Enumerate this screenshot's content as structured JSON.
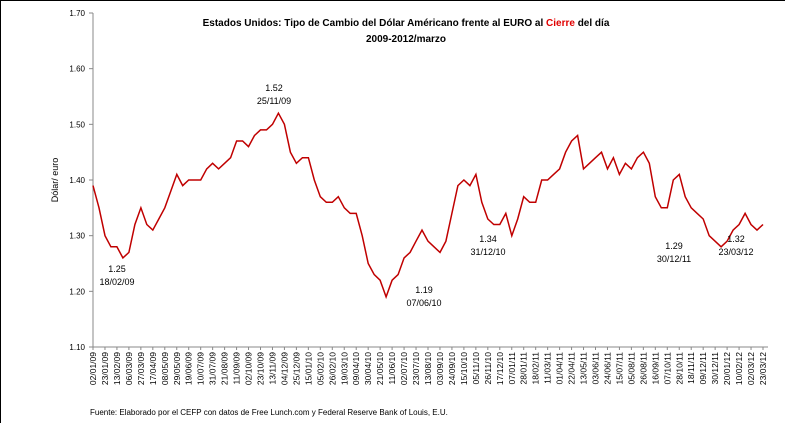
{
  "chart_data": {
    "type": "line",
    "title_parts": [
      "Estados Unidos: Tipo de Cambio del Dólar Américano frente al EURO al ",
      "Cierre",
      " del día"
    ],
    "subtitle": "2009-2012/marzo",
    "y_label": "Dólar/ euro",
    "source": "Fuente: Elaborado por el CEFP con datos de Free Lunch.com y Federal Reserve Bank of Louis, E.U.",
    "ylim": [
      1.1,
      1.7
    ],
    "yticks": [
      {
        "value": 1.1,
        "label": "1.10"
      },
      {
        "value": 1.2,
        "label": "1.20"
      },
      {
        "value": 1.3,
        "label": "1.30"
      },
      {
        "value": 1.4,
        "label": "1.40"
      },
      {
        "value": 1.5,
        "label": "1.50"
      },
      {
        "value": 1.6,
        "label": "1.60"
      },
      {
        "value": 1.7,
        "label": "1.70"
      }
    ],
    "categories": [
      "02/01/09",
      null,
      "23/01/09",
      null,
      "13/02/09",
      null,
      "06/03/09",
      null,
      "27/03/09",
      null,
      "17/04/09",
      null,
      "08/05/09",
      null,
      "29/05/09",
      null,
      "19/06/09",
      null,
      "10/07/09",
      null,
      "31/07/09",
      null,
      "21/08/09",
      null,
      "11/09/09",
      null,
      "02/10/09",
      null,
      "23/10/09",
      null,
      "13/11/09",
      null,
      "04/12/09",
      null,
      "25/12/09",
      null,
      "15/01/10",
      null,
      "05/02/10",
      null,
      "26/02/10",
      null,
      "19/03/10",
      null,
      "09/04/10",
      null,
      "30/04/10",
      null,
      "21/05/10",
      null,
      "11/06/10",
      null,
      "02/07/10",
      null,
      "23/07/10",
      null,
      "13/08/10",
      null,
      "03/09/10",
      null,
      "24/09/10",
      null,
      "15/10/10",
      null,
      "05/11/10",
      null,
      "26/11/10",
      null,
      "17/12/10",
      null,
      "07/01/11",
      null,
      "28/01/11",
      null,
      "18/02/11",
      null,
      "11/03/11",
      null,
      "01/04/11",
      null,
      "22/04/11",
      null,
      "13/05/11",
      null,
      "03/06/11",
      null,
      "24/06/11",
      null,
      "15/07/11",
      null,
      "05/08/11",
      null,
      "26/08/11",
      null,
      "16/09/11",
      null,
      "07/10/11",
      null,
      "28/10/11",
      null,
      "18/11/11",
      null,
      "09/12/11",
      null,
      "30/12/11",
      null,
      "20/01/12",
      null,
      "10/02/12",
      null,
      "02/03/12",
      null,
      "23/03/12"
    ],
    "series": [
      {
        "name": "Dólar/ euro",
        "color": "#c00000",
        "values": [
          1.39,
          1.35,
          1.3,
          1.28,
          1.28,
          1.26,
          1.27,
          1.32,
          1.35,
          1.32,
          1.31,
          1.33,
          1.35,
          1.38,
          1.41,
          1.39,
          1.4,
          1.4,
          1.4,
          1.42,
          1.43,
          1.42,
          1.43,
          1.44,
          1.47,
          1.47,
          1.46,
          1.48,
          1.49,
          1.49,
          1.5,
          1.52,
          1.5,
          1.45,
          1.43,
          1.44,
          1.44,
          1.4,
          1.37,
          1.36,
          1.36,
          1.37,
          1.35,
          1.34,
          1.34,
          1.3,
          1.25,
          1.23,
          1.22,
          1.19,
          1.22,
          1.23,
          1.26,
          1.27,
          1.29,
          1.31,
          1.29,
          1.28,
          1.27,
          1.29,
          1.34,
          1.39,
          1.4,
          1.39,
          1.41,
          1.36,
          1.33,
          1.32,
          1.32,
          1.34,
          1.3,
          1.33,
          1.37,
          1.36,
          1.36,
          1.4,
          1.4,
          1.41,
          1.42,
          1.45,
          1.47,
          1.48,
          1.42,
          1.43,
          1.44,
          1.45,
          1.42,
          1.44,
          1.41,
          1.43,
          1.42,
          1.44,
          1.45,
          1.43,
          1.37,
          1.35,
          1.35,
          1.4,
          1.41,
          1.37,
          1.35,
          1.34,
          1.33,
          1.3,
          1.29,
          1.28,
          1.29,
          1.31,
          1.32,
          1.34,
          1.32,
          1.31,
          1.32
        ]
      }
    ],
    "annotations": [
      {
        "value": 1.52,
        "date": "25/11/09"
      },
      {
        "value": 1.25,
        "date": "18/02/09"
      },
      {
        "value": 1.19,
        "date": "07/06/10"
      },
      {
        "value": 1.34,
        "date": "31/12/10"
      },
      {
        "value": 1.29,
        "date": "30/12/11"
      },
      {
        "value": 1.32,
        "date": "23/03/12"
      }
    ]
  }
}
